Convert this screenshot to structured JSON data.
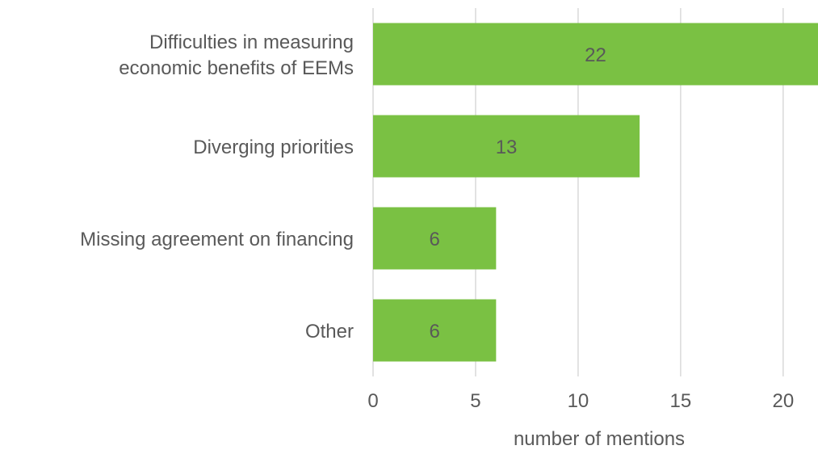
{
  "chart_data": {
    "type": "bar",
    "orientation": "horizontal",
    "categories": [
      [
        "Difficulties in measuring",
        "economic benefits of EEMs"
      ],
      [
        "Diverging priorities"
      ],
      [
        "Missing agreement on financing"
      ],
      [
        "Other"
      ]
    ],
    "values": [
      22,
      13,
      6,
      6
    ],
    "data_labels": [
      "22",
      "13",
      "6",
      "6"
    ],
    "xlabel": "number of  mentions",
    "ylabel": "",
    "xlim": [
      0,
      21.7
    ],
    "x_ticks": [
      0,
      5,
      10,
      15,
      20
    ],
    "grid": "vertical",
    "legend": "none"
  },
  "colors": {
    "bar": "#7ac143",
    "grid": "#d9d9d9",
    "text": "#595959",
    "data_label": "#595959"
  }
}
